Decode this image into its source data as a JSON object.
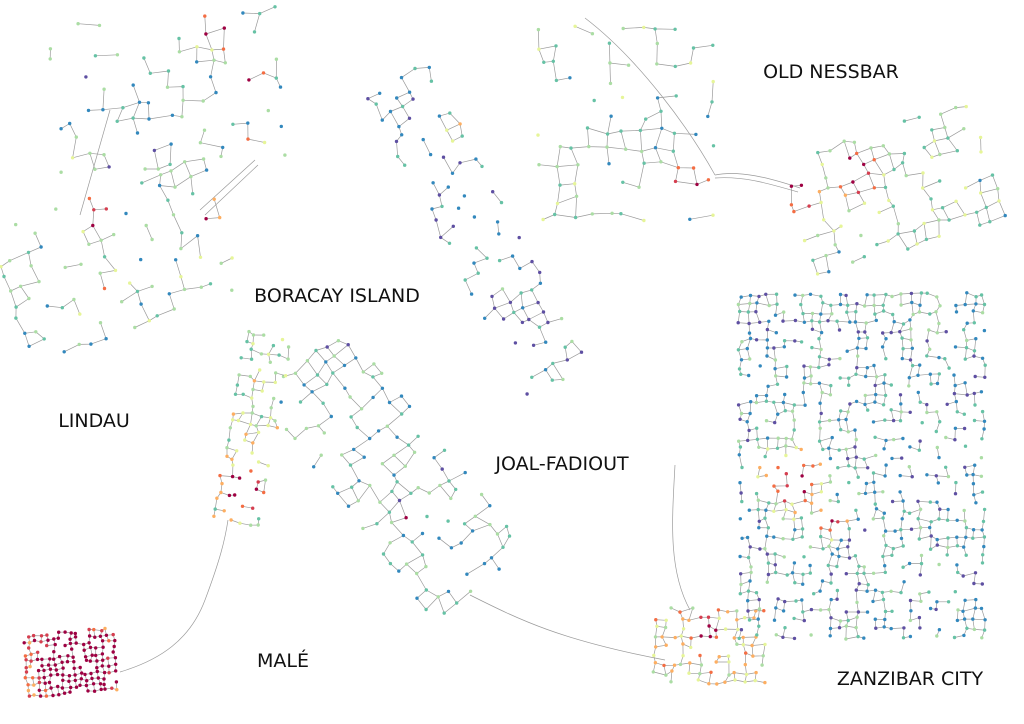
{
  "places": [
    {
      "name": "OLD NESSBAR"
    },
    {
      "name": "BORACAY ISLAND"
    },
    {
      "name": "LINDAU"
    },
    {
      "name": "JOAL-FADIOUT"
    },
    {
      "name": "MALÉ"
    },
    {
      "name": "ZANZIBAR CITY"
    }
  ]
}
